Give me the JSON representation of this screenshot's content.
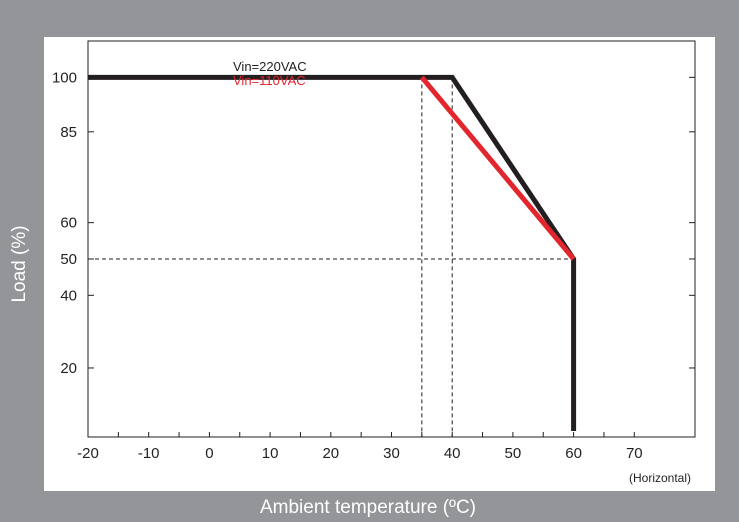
{
  "chart_data": {
    "type": "line",
    "title": "",
    "xlabel": "Ambient temperature (ºC)",
    "ylabel": "Load (%)",
    "x_note": "(Horizontal)",
    "xlim": [
      -20,
      80
    ],
    "ylim": [
      1,
      110
    ],
    "xticks": [
      -20,
      -15,
      -10,
      -5,
      0,
      5,
      10,
      15,
      20,
      25,
      30,
      35,
      40,
      45,
      50,
      55,
      60,
      65,
      70
    ],
    "xtick_labels": [
      {
        "value": -20,
        "label": "-20"
      },
      {
        "value": -10,
        "label": "-10"
      },
      {
        "value": 0,
        "label": "0"
      },
      {
        "value": 10,
        "label": "10"
      },
      {
        "value": 20,
        "label": "20"
      },
      {
        "value": 30,
        "label": "30"
      },
      {
        "value": 40,
        "label": "40"
      },
      {
        "value": 50,
        "label": "50"
      },
      {
        "value": 60,
        "label": "60"
      },
      {
        "value": 70,
        "label": "70"
      }
    ],
    "yticks": [
      {
        "value": 100,
        "label": "100"
      },
      {
        "value": 85,
        "label": "85"
      },
      {
        "value": 60,
        "label": "60"
      },
      {
        "value": 50,
        "label": "50"
      },
      {
        "value": 40,
        "label": "40"
      },
      {
        "value": 20,
        "label": "20"
      }
    ],
    "series": [
      {
        "name": "Vin=220VAC",
        "color": "#231f20",
        "points": [
          [
            -20,
            100
          ],
          [
            40,
            100
          ],
          [
            60,
            50
          ],
          [
            60,
            0
          ]
        ]
      },
      {
        "name": "Vin=110VAC",
        "color": "#e3262e",
        "points": [
          [
            35,
            100
          ],
          [
            60,
            50
          ]
        ]
      }
    ],
    "guides": [
      {
        "type": "vertical",
        "x": 35,
        "y_to": 100
      },
      {
        "type": "vertical",
        "x": 40,
        "y_to": 100
      },
      {
        "type": "horizontal",
        "y": 50,
        "x_to": 60
      }
    ],
    "grid": false,
    "legend_position": "top-left"
  }
}
